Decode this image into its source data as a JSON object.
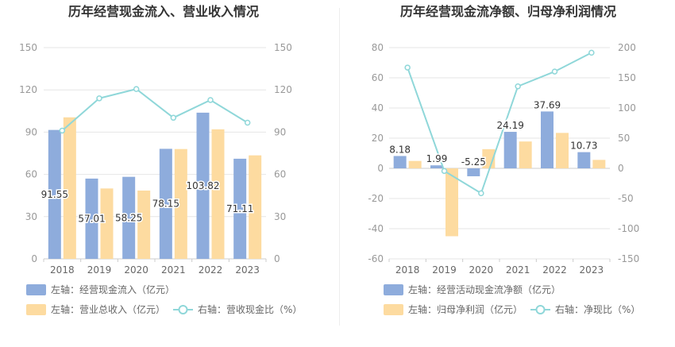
{
  "chart_data": [
    {
      "type": "bar+line",
      "title": "历年经营现金流入、营业收入情况",
      "categories": [
        "2018",
        "2019",
        "2020",
        "2021",
        "2022",
        "2023"
      ],
      "left_axis": {
        "ylim": [
          0,
          150
        ],
        "ticks": [
          "0",
          "30",
          "60",
          "90",
          "120",
          "150"
        ]
      },
      "right_axis": {
        "ylim": [
          0,
          150
        ],
        "ticks": [
          "0",
          "30",
          "60",
          "90",
          "120",
          "150"
        ]
      },
      "series": [
        {
          "name": "左轴：经营现金流入（亿元）",
          "kind": "bar",
          "axis": "left",
          "color": "#8eacdc",
          "values": [
            91.55,
            57.01,
            58.25,
            78.15,
            103.82,
            71.11
          ],
          "labels": [
            "91.55",
            "57.01",
            "58.25",
            "78.15",
            "103.82",
            "71.11"
          ]
        },
        {
          "name": "左轴：营业总收入（亿元）",
          "kind": "bar",
          "axis": "left",
          "color": "#fddba0",
          "values": [
            100.5,
            50.0,
            48.5,
            78.0,
            92.0,
            73.5
          ]
        },
        {
          "name": "右轴：营收现金比（%）",
          "kind": "line",
          "axis": "right",
          "color": "#8fd7d9",
          "values": [
            91.1,
            114.0,
            120.6,
            100.2,
            112.8,
            96.7
          ]
        }
      ]
    },
    {
      "type": "bar+line",
      "title": "历年经营现金流净额、归母净利润情况",
      "categories": [
        "2018",
        "2019",
        "2020",
        "2021",
        "2022",
        "2023"
      ],
      "left_axis": {
        "ylim": [
          -60,
          80
        ],
        "ticks": [
          "-60",
          "-40",
          "-20",
          "0",
          "20",
          "40",
          "60",
          "80"
        ]
      },
      "right_axis": {
        "ylim": [
          -150,
          200
        ],
        "ticks": [
          "-150",
          "-100",
          "-50",
          "0",
          "50",
          "100",
          "150",
          "200"
        ]
      },
      "series": [
        {
          "name": "左轴：经营活动现金流净额（亿元）",
          "kind": "bar",
          "axis": "left",
          "color": "#8eacdc",
          "values": [
            8.18,
            1.99,
            -5.25,
            24.19,
            37.69,
            10.73
          ],
          "labels": [
            "8.18",
            "1.99",
            "-5.25",
            "24.19",
            "37.69",
            "10.73"
          ]
        },
        {
          "name": "左轴：归母净利润（亿元）",
          "kind": "bar",
          "axis": "left",
          "color": "#fddba0",
          "values": [
            4.9,
            -45.0,
            12.7,
            17.8,
            23.5,
            5.6
          ]
        },
        {
          "name": "右轴：净现比（%）",
          "kind": "line",
          "axis": "right",
          "color": "#8fd7d9",
          "values": [
            167.0,
            -4.4,
            -41.3,
            135.9,
            160.4,
            191.6
          ]
        }
      ]
    }
  ]
}
